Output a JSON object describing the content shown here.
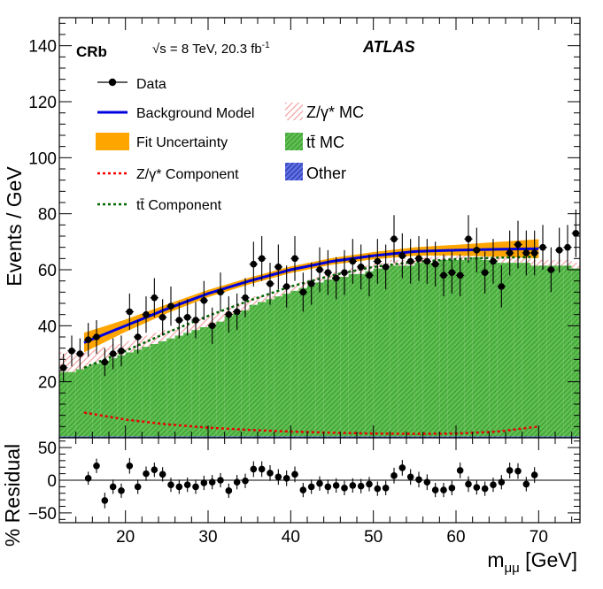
{
  "chart_data": [
    {
      "type": "bar",
      "panel": "main",
      "ylabel": "Events / GeV",
      "xlim": [
        12,
        75
      ],
      "ylim": [
        0,
        150
      ],
      "y_ticks": [
        20,
        40,
        60,
        80,
        100,
        120,
        140
      ],
      "y_tick_labels": [
        "20",
        "40",
        "60",
        "80",
        "100",
        "120",
        "140"
      ],
      "tag": "CRb",
      "energy_label": "√s = 8 TeV, 20.3 fb",
      "energy_sup": "-1",
      "experiment": "ATLAS",
      "legend": {
        "data": "Data",
        "background_model": "Background Model",
        "fit_uncertainty": "Fit Uncertainty",
        "z_component": "Z/γ* Component",
        "tt_component": "tt̄ Component",
        "z_mc": "Z/γ* MC",
        "tt_mc": "tt̄ MC",
        "other": "Other"
      },
      "colors": {
        "data": "#000000",
        "background_model": "#0000dd",
        "fit_uncertainty": "#ffa500",
        "z_component": "#ee0000",
        "tt_component": "#006600",
        "z_mc": "#f2a0a0",
        "tt_mc": "#2ca02c",
        "other": "#2030b0"
      },
      "mc_bins": {
        "x_start": 12,
        "width": 1,
        "tt": [
          23,
          23,
          24,
          25,
          26,
          27,
          28,
          29,
          30,
          31,
          32,
          33,
          34,
          35,
          36,
          37,
          38,
          39,
          40,
          41,
          43,
          44,
          45,
          47,
          48,
          49,
          50,
          51,
          52,
          53,
          54,
          55,
          56,
          57,
          57,
          58,
          58,
          59,
          60,
          60,
          61,
          61,
          61,
          62,
          62,
          62,
          63,
          63,
          63,
          63,
          64,
          63,
          63,
          62,
          62,
          62,
          62,
          61,
          61,
          61,
          61,
          61,
          60
        ],
        "z": [
          7,
          6,
          6,
          5,
          5,
          5,
          5,
          4,
          4,
          4,
          4,
          4,
          4,
          3,
          3,
          3,
          3,
          3,
          3,
          3,
          3,
          3,
          3,
          3,
          2,
          2,
          2,
          2,
          2,
          2,
          2,
          2,
          2,
          2,
          2,
          2,
          2,
          2,
          2,
          2,
          2,
          2,
          2,
          2,
          2,
          2,
          2,
          2,
          2,
          2,
          2,
          2,
          2,
          2,
          2,
          2,
          2,
          2,
          2,
          2,
          2,
          2,
          2
        ],
        "other": [
          0.5,
          0.5,
          0.5,
          0.5,
          0.5,
          0.5,
          0.5,
          0.5,
          0.5,
          0.5,
          0.5,
          0.5,
          0.5,
          0.5,
          0.5,
          0.5,
          0.5,
          0.5,
          0.5,
          0.5,
          0.5,
          0.5,
          0.5,
          0.5,
          0.5,
          0.5,
          0.5,
          0.5,
          0.5,
          0.5,
          0.5,
          0.5,
          0.5,
          0.5,
          0.5,
          0.5,
          0.5,
          0.5,
          0.5,
          0.5,
          0.5,
          0.5,
          0.5,
          0.5,
          0.5,
          0.5,
          0.5,
          0.5,
          0.5,
          0.5,
          0.5,
          0.5,
          0.5,
          0.5,
          0.5,
          0.5,
          0.5,
          0.5,
          0.5,
          0.5,
          0.5,
          0.5,
          0.5
        ]
      },
      "data_points": {
        "x": [
          12.5,
          13.5,
          14.5,
          15.5,
          16.5,
          17.5,
          18.5,
          19.5,
          20.5,
          21.5,
          22.5,
          23.5,
          24.5,
          25.5,
          26.5,
          27.5,
          28.5,
          29.5,
          30.5,
          31.5,
          32.5,
          33.5,
          34.5,
          35.5,
          36.5,
          37.5,
          38.5,
          39.5,
          40.5,
          41.5,
          42.5,
          43.5,
          44.5,
          45.5,
          46.5,
          47.5,
          48.5,
          49.5,
          50.5,
          51.5,
          52.5,
          53.5,
          54.5,
          55.5,
          56.5,
          57.5,
          58.5,
          59.5,
          60.5,
          61.5,
          62.5,
          63.5,
          64.5,
          65.5,
          66.5,
          67.5,
          68.5,
          69.5,
          70.5,
          71.5,
          72.5,
          73.5,
          74.5
        ],
        "y": [
          25,
          31,
          30,
          35,
          36,
          27,
          30,
          31,
          45,
          36,
          44,
          50,
          43,
          47,
          42,
          43,
          42,
          49,
          40,
          52,
          44,
          45,
          50,
          62,
          64,
          55,
          61,
          54,
          64,
          52,
          55,
          60,
          59,
          57,
          59,
          63,
          61,
          58,
          63,
          61,
          71,
          65,
          63,
          64,
          63,
          62,
          58,
          59,
          58,
          71,
          67,
          59,
          63,
          54,
          66,
          69,
          66,
          66,
          68,
          60,
          67,
          68,
          73
        ],
        "err": [
          5,
          5.5,
          5.5,
          6,
          6,
          5,
          5.5,
          5.5,
          6.5,
          6,
          6.5,
          7,
          6.5,
          7,
          6.5,
          6.5,
          6.5,
          7,
          6.5,
          7,
          6.5,
          6.5,
          7,
          8,
          8,
          7.5,
          8,
          7.5,
          8,
          7,
          7.5,
          8,
          8,
          7.5,
          8,
          8,
          8,
          7.5,
          8,
          8,
          8.5,
          8,
          8,
          8,
          8,
          8,
          7.5,
          7.5,
          7.5,
          8.5,
          8,
          7.5,
          8,
          7.5,
          8,
          8.5,
          8,
          8,
          8,
          8,
          8,
          8,
          8.5
        ]
      },
      "curves": {
        "x_range": [
          15,
          70
        ],
        "background_model": [
          [
            15,
            34
          ],
          [
            20,
            40
          ],
          [
            25,
            46
          ],
          [
            30,
            51.5
          ],
          [
            35,
            56
          ],
          [
            40,
            60
          ],
          [
            45,
            63
          ],
          [
            50,
            65
          ],
          [
            55,
            66.5
          ],
          [
            60,
            67
          ],
          [
            65,
            67.3
          ],
          [
            70,
            67.5
          ]
        ],
        "uncertainty": [
          3.5,
          2.2,
          1.6,
          1.3,
          1.2,
          1.2,
          1.2,
          1.3,
          1.5,
          1.9,
          2.6,
          3.4
        ],
        "tt_component": [
          [
            15,
            25
          ],
          [
            20,
            31
          ],
          [
            25,
            37.5
          ],
          [
            30,
            43.5
          ],
          [
            35,
            49
          ],
          [
            40,
            54
          ],
          [
            45,
            58
          ],
          [
            50,
            61
          ],
          [
            55,
            62.8
          ],
          [
            60,
            63.8
          ],
          [
            65,
            64.3
          ],
          [
            70,
            64.6
          ]
        ],
        "z_component": [
          [
            15,
            9
          ],
          [
            20,
            6.5
          ],
          [
            25,
            4.8
          ],
          [
            30,
            3.6
          ],
          [
            35,
            2.8
          ],
          [
            40,
            2.2
          ],
          [
            45,
            1.8
          ],
          [
            50,
            1.5
          ],
          [
            55,
            1.4
          ],
          [
            60,
            1.5
          ],
          [
            65,
            2.2
          ],
          [
            70,
            4
          ]
        ]
      }
    },
    {
      "type": "scatter",
      "panel": "residual",
      "ylabel": "% Residual",
      "xlabel": "m",
      "xlabel_sub": "μμ",
      "xlabel_unit": " [GeV]",
      "xlim": [
        12,
        75
      ],
      "ylim": [
        -65,
        65
      ],
      "y_ticks": [
        -50,
        0,
        50
      ],
      "y_tick_labels": [
        "−50",
        "0",
        "50"
      ],
      "x_ticks": [
        20,
        30,
        40,
        50,
        60,
        70
      ],
      "x_tick_labels": [
        "20",
        "30",
        "40",
        "50",
        "60",
        "70"
      ],
      "x": [
        15.5,
        16.5,
        17.5,
        18.5,
        19.5,
        20.5,
        21.5,
        22.5,
        23.5,
        24.5,
        25.5,
        26.5,
        27.5,
        28.5,
        29.5,
        30.5,
        31.5,
        32.5,
        33.5,
        34.5,
        35.5,
        36.5,
        37.5,
        38.5,
        39.5,
        40.5,
        41.5,
        42.5,
        43.5,
        44.5,
        45.5,
        46.5,
        47.5,
        48.5,
        49.5,
        50.5,
        51.5,
        52.5,
        53.5,
        54.5,
        55.5,
        56.5,
        57.5,
        58.5,
        59.5,
        60.5,
        61.5,
        62.5,
        63.5,
        64.5,
        65.5,
        66.5,
        67.5,
        68.5,
        69.5
      ],
      "y": [
        3,
        22,
        -31,
        -10,
        -16,
        22,
        -10,
        10,
        16,
        9,
        -7,
        -10,
        -7,
        -10,
        -4,
        -3,
        0,
        -16,
        -3,
        -1,
        17,
        17,
        11,
        5,
        3,
        9,
        -15,
        -10,
        -5,
        -10,
        -8,
        -12,
        -8,
        -9,
        -6,
        -13,
        -12,
        7,
        19,
        5,
        1,
        -3,
        -15,
        -15,
        -12,
        15,
        -6,
        -11,
        -13,
        -7,
        -3,
        15,
        14,
        -6,
        8
      ],
      "err": [
        10,
        11,
        12,
        11,
        11,
        12,
        11,
        11,
        11,
        11,
        11,
        11,
        11,
        11,
        11,
        11,
        11,
        11,
        11,
        11,
        12,
        12,
        12,
        12,
        12,
        12,
        11,
        11,
        11,
        11,
        11,
        11,
        11,
        11,
        11,
        11,
        11,
        12,
        12,
        12,
        12,
        12,
        11,
        11,
        11,
        12,
        12,
        11,
        11,
        11,
        11,
        12,
        12,
        11,
        12
      ]
    }
  ]
}
